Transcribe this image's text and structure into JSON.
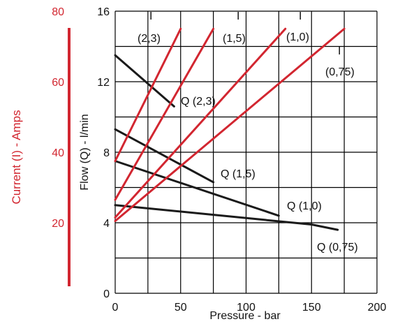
{
  "chart_data": {
    "type": "line",
    "title": "",
    "xlabel": "Pressure - bar",
    "ylabel": "Flow (Q) - l/min",
    "y2label": "Current (I) - Amps",
    "xlim": [
      0,
      200
    ],
    "ylim": [
      0,
      16
    ],
    "y2lim": [
      0,
      80
    ],
    "grid": true,
    "x_ticks": [
      "0",
      "50",
      "100",
      "150",
      "200"
    ],
    "y_ticks": [
      "0",
      "4",
      "8",
      "12",
      "16"
    ],
    "y2_ticks": [
      "20",
      "40",
      "60",
      "80"
    ],
    "axis_color": "#d22630",
    "flow_color": "#1a1a1a",
    "current_color": "#d22630",
    "flow_series": [
      {
        "label": "Q (2,3)",
        "x": [
          0,
          45
        ],
        "y": [
          13.5,
          10.6
        ]
      },
      {
        "label": "Q (1,5)",
        "x": [
          0,
          75
        ],
        "y": [
          9.3,
          6.3
        ]
      },
      {
        "label": "Q (1,0)",
        "x": [
          0,
          125
        ],
        "y": [
          7.5,
          4.4
        ]
      },
      {
        "label": "Q (0,75)",
        "x": [
          0,
          150,
          170
        ],
        "y": [
          5.0,
          3.9,
          3.6
        ]
      }
    ],
    "current_series": [
      {
        "label_top": "I",
        "label_bottom": "(2,3)",
        "x": [
          0,
          50
        ],
        "y": [
          7.5,
          15.0
        ]
      },
      {
        "label_top": "I",
        "label_bottom": "(1,5)",
        "x": [
          0,
          75
        ],
        "y": [
          5.3,
          15.0
        ]
      },
      {
        "label_top": "I",
        "label_bottom": "(1,0)",
        "x": [
          0,
          130
        ],
        "y": [
          4.3,
          15.0
        ]
      },
      {
        "label_top": "I",
        "label_bottom": "(0,75)",
        "x": [
          0,
          175
        ],
        "y": [
          4.1,
          15.0
        ]
      }
    ]
  }
}
